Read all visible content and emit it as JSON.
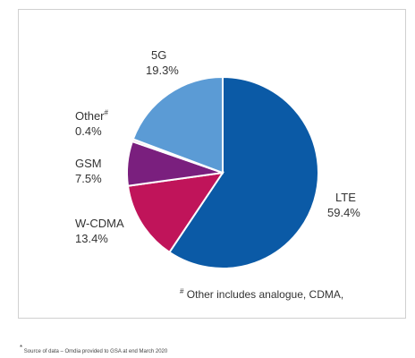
{
  "chart_data": {
    "type": "pie",
    "title": "",
    "categories": [
      "LTE",
      "W-CDMA",
      "GSM",
      "Other",
      "5G"
    ],
    "values": [
      59.4,
      13.4,
      7.5,
      0.4,
      19.3
    ],
    "value_labels": [
      "59.4%",
      "13.4%",
      "7.5%",
      "0.4%",
      "19.3%"
    ],
    "colors": [
      "#0b5aa6",
      "#c0145a",
      "#7a1f7e",
      "#e6c8d8",
      "#5b9bd5"
    ],
    "start": "12 o'clock",
    "direction": "clockwise",
    "legend": "none (direct labels)"
  },
  "labels": {
    "lte": "LTE",
    "lte_value": "59.4%",
    "wcdma": "W-CDMA",
    "wcdma_value": "13.4%",
    "gsm": "GSM",
    "gsm_value": "7.5%",
    "other": "Other",
    "other_mark": "#",
    "other_value": "0.4%",
    "g5": "5G",
    "g5_value": "19.3%"
  },
  "footnote": {
    "mark": "#",
    "text": " Other includes analogue, CDMA,"
  },
  "source": {
    "mark": "*",
    "text": " Source of data – Omdia provided to GSA at end March 2020"
  }
}
